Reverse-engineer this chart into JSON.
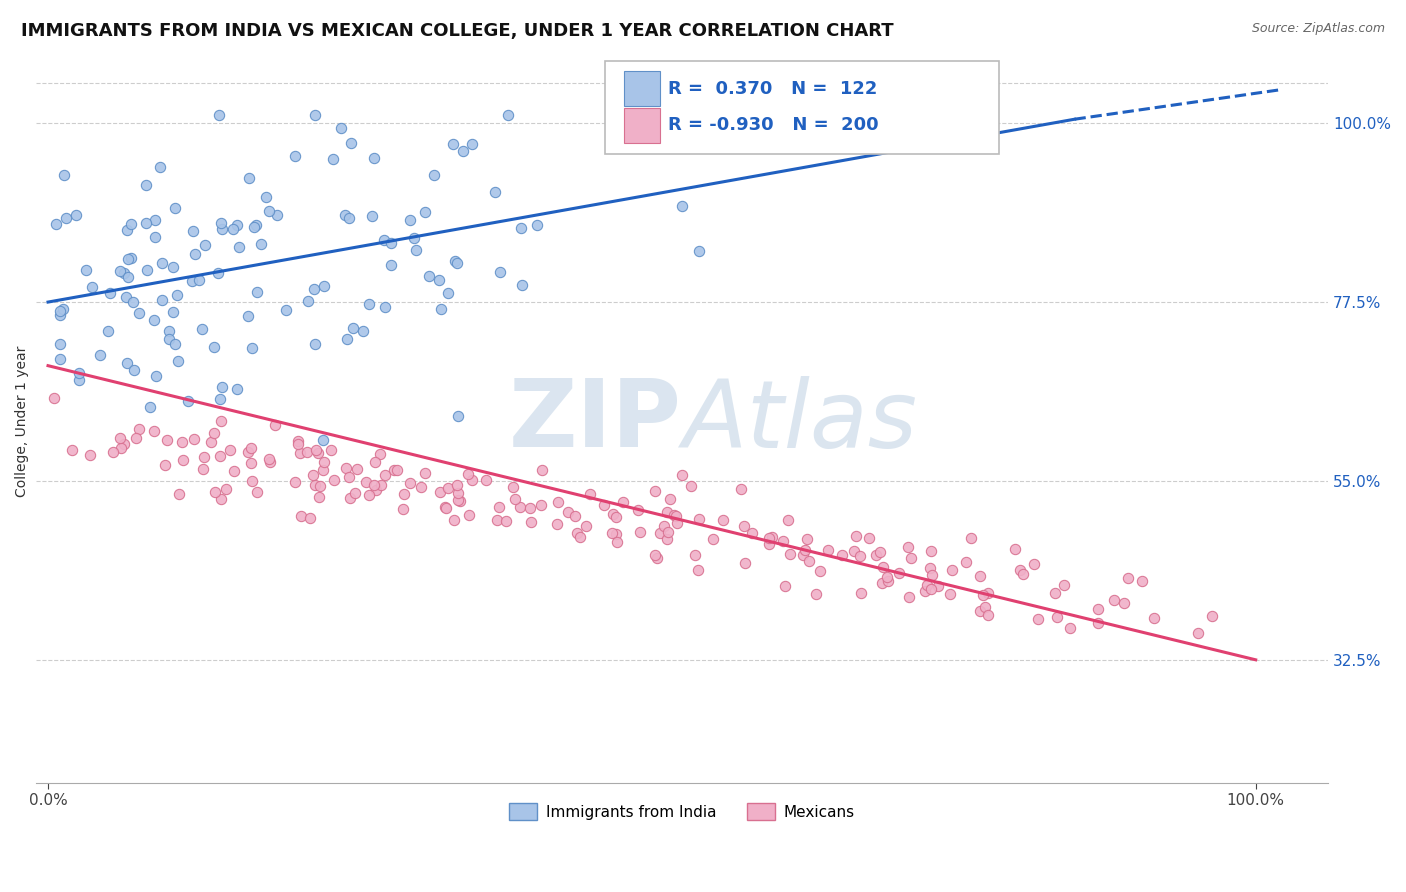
{
  "title": "IMMIGRANTS FROM INDIA VS MEXICAN COLLEGE, UNDER 1 YEAR CORRELATION CHART",
  "source": "Source: ZipAtlas.com",
  "ylabel": "College, Under 1 year",
  "legend_entries": [
    {
      "label": "Immigrants from India",
      "R": 0.37,
      "N": 122
    },
    {
      "label": "Mexicans",
      "R": -0.93,
      "N": 200
    }
  ],
  "yticks": [
    0.325,
    0.55,
    0.775,
    1.0
  ],
  "ytick_labels": [
    "32.5%",
    "55.0%",
    "77.5%",
    "100.0%"
  ],
  "xticks": [
    0.0,
    1.0
  ],
  "xtick_labels": [
    "0.0%",
    "100.0%"
  ],
  "watermark": "ZIPAtlas",
  "background_color": "#ffffff",
  "grid_color": "#c8c8c8",
  "india_R": 0.37,
  "india_N": 122,
  "mexico_R": -0.93,
  "mexico_N": 200,
  "india_line_x0": 0.0,
  "india_line_y0": 0.775,
  "india_line_x1": 0.85,
  "india_line_y1": 1.005,
  "india_line_dash_x1": 1.02,
  "india_line_dash_y1": 1.042,
  "mexico_line_x0": 0.0,
  "mexico_line_y0": 0.695,
  "mexico_line_x1": 1.0,
  "mexico_line_y1": 0.325,
  "india_dot_color": "#a8c4e8",
  "india_dot_edge": "#6090c8",
  "mexico_dot_color": "#f0b0c8",
  "mexico_dot_edge": "#d87090",
  "india_line_color": "#2060c0",
  "mexico_line_color": "#e04070",
  "title_fontsize": 13,
  "legend_fontsize": 13,
  "dot_size": 55,
  "line_width": 2.2,
  "xlim_min": -0.01,
  "xlim_max": 1.06,
  "ylim_min": 0.17,
  "ylim_max": 1.08
}
